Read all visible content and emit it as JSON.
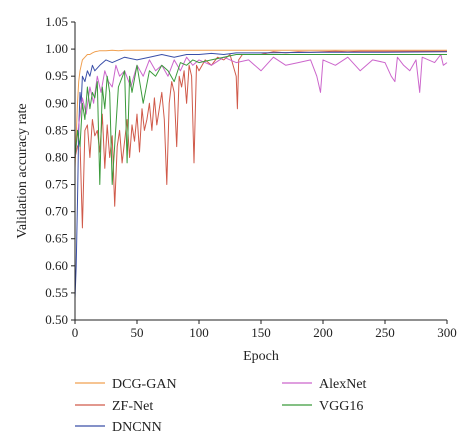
{
  "chart_data": {
    "type": "line",
    "xlabel": "Epoch",
    "ylabel": "Validation accuracy rate",
    "xlim": [
      0,
      300
    ],
    "ylim": [
      0.5,
      1.05
    ],
    "x_ticks": [
      "0",
      "50",
      "100",
      "150",
      "200",
      "250",
      "300"
    ],
    "y_ticks": [
      "0.50",
      "0.55",
      "0.60",
      "0.65",
      "0.70",
      "0.75",
      "0.80",
      "0.85",
      "0.90",
      "0.95",
      "1.00",
      "1.05"
    ],
    "grid": false,
    "legend_position": "bottom",
    "series": [
      {
        "name": "DCG-GAN",
        "color": "#f0a050",
        "x": [
          0,
          1,
          2,
          3,
          4,
          5,
          6,
          8,
          10,
          12,
          14,
          16,
          18,
          20,
          25,
          30,
          35,
          40,
          50,
          60,
          80,
          100,
          150,
          200,
          250,
          300
        ],
        "y": [
          0.78,
          0.84,
          0.9,
          0.94,
          0.96,
          0.97,
          0.98,
          0.985,
          0.99,
          0.99,
          0.993,
          0.995,
          0.996,
          0.997,
          0.997,
          0.998,
          0.997,
          0.998,
          0.998,
          0.998,
          0.998,
          0.998,
          0.998,
          0.998,
          0.998,
          0.998
        ]
      },
      {
        "name": "ZF-Net",
        "color": "#d05a4a",
        "x": [
          0,
          2,
          4,
          6,
          8,
          10,
          12,
          14,
          16,
          18,
          20,
          22,
          24,
          26,
          28,
          30,
          32,
          34,
          36,
          38,
          40,
          42,
          44,
          46,
          48,
          50,
          52,
          54,
          56,
          58,
          60,
          62,
          64,
          66,
          68,
          70,
          72,
          74,
          76,
          78,
          80,
          82,
          84,
          86,
          88,
          90,
          92,
          94,
          96,
          98,
          100,
          105,
          110,
          115,
          120,
          125,
          130,
          131,
          132,
          135,
          140,
          150,
          160,
          170,
          180,
          190,
          200,
          210,
          220,
          230,
          240,
          250,
          260,
          270,
          280,
          290,
          300
        ],
        "y": [
          0.8,
          0.82,
          0.83,
          0.67,
          0.85,
          0.86,
          0.8,
          0.87,
          0.84,
          0.85,
          0.81,
          0.88,
          0.78,
          0.86,
          0.8,
          0.84,
          0.71,
          0.82,
          0.85,
          0.79,
          0.83,
          0.87,
          0.8,
          0.86,
          0.83,
          0.88,
          0.81,
          0.89,
          0.85,
          0.87,
          0.9,
          0.85,
          0.91,
          0.86,
          0.89,
          0.92,
          0.87,
          0.75,
          0.9,
          0.94,
          0.92,
          0.82,
          0.95,
          0.93,
          0.96,
          0.9,
          0.97,
          0.95,
          0.79,
          0.97,
          0.96,
          0.98,
          0.97,
          0.985,
          0.98,
          0.99,
          0.95,
          0.89,
          0.98,
          0.99,
          0.99,
          0.99,
          0.995,
          0.993,
          0.995,
          0.994,
          0.995,
          0.996,
          0.995,
          0.996,
          0.996,
          0.996,
          0.996,
          0.996,
          0.996,
          0.996,
          0.996
        ]
      },
      {
        "name": "DNCNN",
        "color": "#3a4fa8",
        "x": [
          0,
          1,
          2,
          3,
          4,
          5,
          6,
          8,
          10,
          12,
          14,
          16,
          20,
          25,
          30,
          40,
          50,
          60,
          70,
          80,
          90,
          100,
          110,
          120,
          130,
          150,
          200,
          250,
          300
        ],
        "y": [
          0.54,
          0.6,
          0.72,
          0.85,
          0.92,
          0.9,
          0.95,
          0.94,
          0.96,
          0.95,
          0.97,
          0.96,
          0.97,
          0.98,
          0.975,
          0.985,
          0.98,
          0.985,
          0.99,
          0.985,
          0.99,
          0.99,
          0.992,
          0.99,
          0.993,
          0.993,
          0.994,
          0.994,
          0.995
        ]
      },
      {
        "name": "AlexNet",
        "color": "#cc66cc",
        "x": [
          0,
          3,
          6,
          9,
          12,
          15,
          18,
          21,
          24,
          27,
          30,
          33,
          36,
          40,
          45,
          50,
          55,
          60,
          65,
          70,
          75,
          80,
          85,
          90,
          95,
          100,
          110,
          120,
          130,
          140,
          150,
          160,
          170,
          180,
          190,
          195,
          198,
          200,
          210,
          220,
          230,
          240,
          250,
          255,
          258,
          260,
          265,
          270,
          275,
          278,
          280,
          290,
          295,
          297,
          300
        ],
        "y": [
          0.8,
          0.86,
          0.91,
          0.88,
          0.93,
          0.9,
          0.95,
          0.92,
          0.96,
          0.94,
          0.93,
          0.97,
          0.95,
          0.96,
          0.93,
          0.97,
          0.95,
          0.98,
          0.96,
          0.97,
          0.95,
          0.98,
          0.96,
          0.985,
          0.97,
          0.98,
          0.97,
          0.985,
          0.975,
          0.98,
          0.96,
          0.985,
          0.97,
          0.975,
          0.98,
          0.95,
          0.92,
          0.98,
          0.97,
          0.985,
          0.96,
          0.98,
          0.975,
          0.95,
          0.94,
          0.985,
          0.97,
          0.96,
          0.98,
          0.92,
          0.985,
          0.975,
          0.99,
          0.97,
          0.975
        ]
      },
      {
        "name": "VGG16",
        "color": "#3a9a3a",
        "x": [
          0,
          2,
          4,
          6,
          8,
          10,
          12,
          14,
          16,
          18,
          20,
          22,
          24,
          26,
          28,
          30,
          35,
          40,
          42,
          44,
          46,
          50,
          55,
          60,
          65,
          70,
          75,
          80,
          85,
          90,
          95,
          100,
          110,
          120,
          130,
          150,
          170,
          200,
          220,
          250,
          300
        ],
        "y": [
          0.8,
          0.85,
          0.82,
          0.9,
          0.87,
          0.93,
          0.89,
          0.92,
          0.91,
          0.94,
          0.75,
          0.93,
          0.89,
          0.95,
          0.92,
          0.75,
          0.93,
          0.96,
          0.79,
          0.95,
          0.92,
          0.97,
          0.9,
          0.96,
          0.95,
          0.97,
          0.96,
          0.94,
          0.975,
          0.97,
          0.98,
          0.975,
          0.98,
          0.985,
          0.99,
          0.99,
          0.99,
          0.99,
          0.99,
          0.99,
          0.99
        ]
      }
    ]
  }
}
